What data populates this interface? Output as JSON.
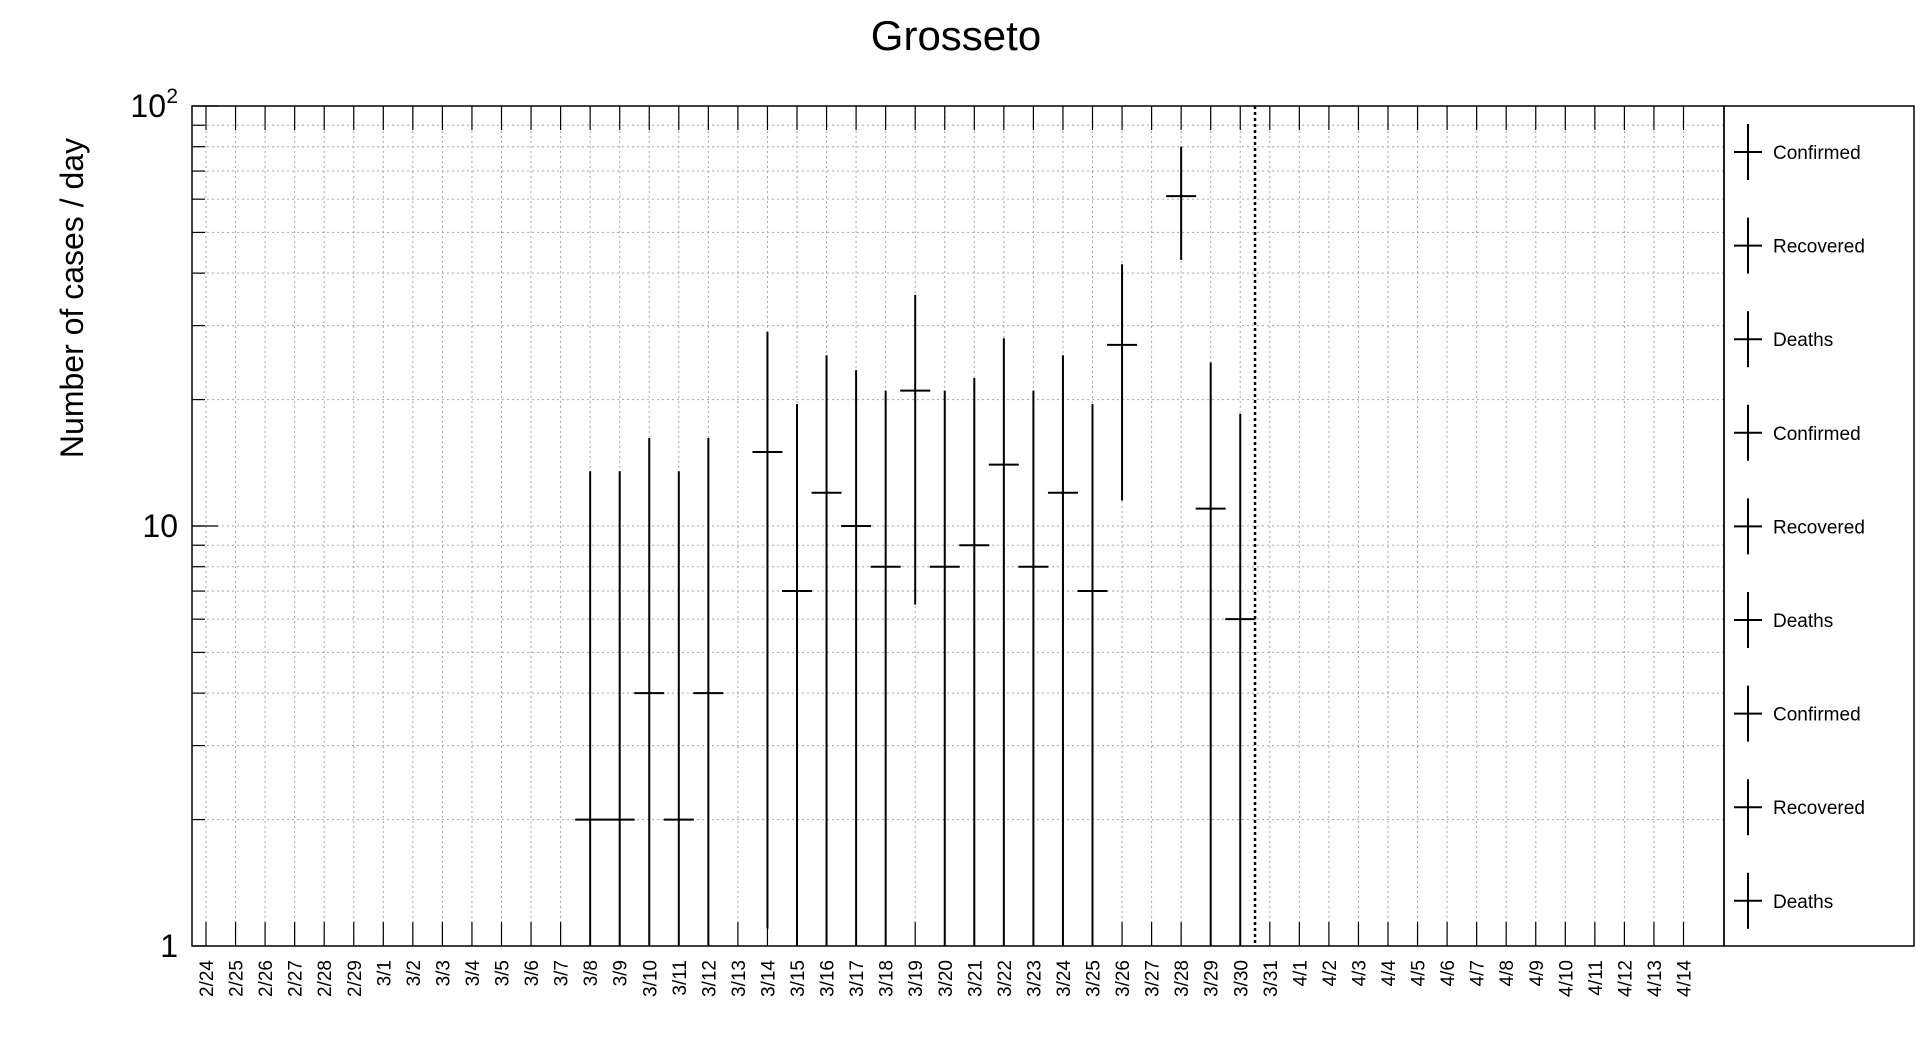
{
  "chart_data": {
    "type": "scatter",
    "title": "Grosseto",
    "ylabel": "Number of cases / day",
    "xlabel": "",
    "y_scale": "log",
    "ylim": [
      1,
      100
    ],
    "y_tick_labels": [
      {
        "value": 1,
        "label": "1"
      },
      {
        "value": 10,
        "label": "10"
      },
      {
        "value": 100,
        "label": "10",
        "sup": "2"
      }
    ],
    "categories": [
      "2/24",
      "2/25",
      "2/26",
      "2/27",
      "2/28",
      "2/29",
      "3/1",
      "3/2",
      "3/3",
      "3/4",
      "3/5",
      "3/6",
      "3/7",
      "3/8",
      "3/9",
      "3/10",
      "3/11",
      "3/12",
      "3/13",
      "3/14",
      "3/15",
      "3/16",
      "3/17",
      "3/18",
      "3/19",
      "3/20",
      "3/21",
      "3/22",
      "3/23",
      "3/24",
      "3/25",
      "3/26",
      "3/27",
      "3/28",
      "3/29",
      "3/30",
      "3/31",
      "4/1",
      "4/2",
      "4/3",
      "4/4",
      "4/5",
      "4/6",
      "4/7",
      "4/8",
      "4/9",
      "4/10",
      "4/11",
      "4/12",
      "4/13",
      "4/14"
    ],
    "grid": true,
    "marker_date": "3/31",
    "series": [
      {
        "name": "Confirmed",
        "points": [
          {
            "x": "3/8",
            "y": 2,
            "err_low": 1,
            "err_high": 13.5
          },
          {
            "x": "3/9",
            "y": 2,
            "err_low": 1,
            "err_high": 13.5
          },
          {
            "x": "3/10",
            "y": 4,
            "err_low": 1,
            "err_high": 16.2
          },
          {
            "x": "3/11",
            "y": 2,
            "err_low": 1,
            "err_high": 13.5
          },
          {
            "x": "3/12",
            "y": 4,
            "err_low": 1,
            "err_high": 16.2
          },
          {
            "x": "3/14",
            "y": 15,
            "err_low": 1.1,
            "err_high": 29
          },
          {
            "x": "3/15",
            "y": 7,
            "err_low": 1,
            "err_high": 19.5
          },
          {
            "x": "3/16",
            "y": 12,
            "err_low": 1,
            "err_high": 25.5
          },
          {
            "x": "3/17",
            "y": 10,
            "err_low": 1,
            "err_high": 23.5
          },
          {
            "x": "3/18",
            "y": 8,
            "err_low": 1,
            "err_high": 21
          },
          {
            "x": "3/19",
            "y": 21,
            "err_low": 6.5,
            "err_high": 35.5
          },
          {
            "x": "3/20",
            "y": 8,
            "err_low": 1,
            "err_high": 21
          },
          {
            "x": "3/21",
            "y": 9,
            "err_low": 1,
            "err_high": 22.5
          },
          {
            "x": "3/22",
            "y": 14,
            "err_low": 1,
            "err_high": 28
          },
          {
            "x": "3/23",
            "y": 8,
            "err_low": 1,
            "err_high": 21
          },
          {
            "x": "3/24",
            "y": 12,
            "err_low": 1,
            "err_high": 25.5
          },
          {
            "x": "3/25",
            "y": 7,
            "err_low": 1,
            "err_high": 19.5
          },
          {
            "x": "3/26",
            "y": 27,
            "err_low": 11.5,
            "err_high": 42
          },
          {
            "x": "3/28",
            "y": 61,
            "err_low": 43,
            "err_high": 80
          },
          {
            "x": "3/29",
            "y": 11,
            "err_low": 1,
            "err_high": 24.5
          },
          {
            "x": "3/30",
            "y": 6,
            "err_low": 1,
            "err_high": 18.5
          }
        ]
      }
    ],
    "legend": {
      "position": "right",
      "entries": [
        "Confirmed",
        "Recovered",
        "Deaths",
        "Confirmed",
        "Recovered",
        "Deaths",
        "Confirmed",
        "Recovered",
        "Deaths"
      ]
    }
  }
}
